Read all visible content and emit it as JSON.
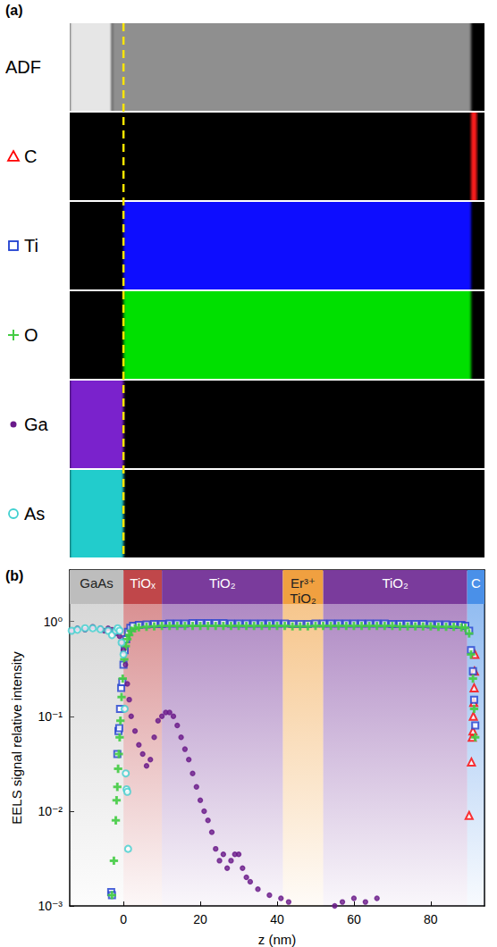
{
  "panel_a": {
    "panel_label": "(a)",
    "dashed_line": {
      "z": 0,
      "color": "#ffe600",
      "line_style": "dashed"
    },
    "rows": [
      {
        "label": "ADF",
        "regions": [
          {
            "z": [
              -14,
              -3
            ],
            "color": "#e6e6e6"
          },
          {
            "z": [
              -3,
              90.5
            ],
            "color": "#8f8f8f"
          }
        ]
      },
      {
        "label": "C",
        "regions": [
          {
            "z": [
              90.5,
              92
            ],
            "color": "#ff1a1a"
          }
        ]
      },
      {
        "label": "Ti",
        "regions": [
          {
            "z": [
              0,
              90.5
            ],
            "color": "#0a0aff"
          }
        ]
      },
      {
        "label": "O",
        "regions": [
          {
            "z": [
              0,
              90.5
            ],
            "color": "#00e000"
          }
        ]
      },
      {
        "label": "Ga",
        "regions": [
          {
            "z": [
              -14,
              0
            ],
            "color": "#7a22cc"
          }
        ]
      },
      {
        "label": "As",
        "regions": [
          {
            "z": [
              -14,
              0
            ],
            "color": "#22cccc"
          }
        ]
      }
    ]
  },
  "chart_data": {
    "type": "scatter",
    "panel_label": "(b)",
    "x_label": "z (nm)",
    "y_label": "EELS signal relative intensity",
    "xlim": [
      -14,
      94
    ],
    "ylim": [
      0.001,
      3.5
    ],
    "xticks": [
      0,
      20,
      40,
      60,
      80
    ],
    "yticks": [
      {
        "value": 0.001,
        "label": "10⁻³"
      },
      {
        "value": 0.01,
        "label": "10⁻²"
      },
      {
        "value": 0.1,
        "label": "10⁻¹"
      },
      {
        "value": 1,
        "label": "10⁰"
      }
    ],
    "log": "y",
    "grid": false,
    "layers": [
      {
        "label": "GaAs",
        "z": [
          -14,
          0
        ],
        "color": "#bdbdbd"
      },
      {
        "label": "TiOₓ",
        "z": [
          0,
          10
        ],
        "color": "#c0474a"
      },
      {
        "label": "TiO₂",
        "z": [
          10,
          41.5
        ],
        "color": "#7a3b9c"
      },
      {
        "label": "Er³⁺ TiO₂",
        "z": [
          41.5,
          52
        ],
        "color": "#f0a040"
      },
      {
        "label": "TiO₂",
        "z": [
          52,
          89.5
        ],
        "color": "#7a3b9c"
      },
      {
        "label": "C",
        "z": [
          89.5,
          94
        ],
        "color": "#4a90e8"
      }
    ],
    "series": [
      {
        "name": "C",
        "color": "#ff0000",
        "marker": "triangle-open",
        "x": [
          90,
          90.6,
          90.8,
          91,
          91.1,
          91.2,
          91.3,
          91.4,
          91.5
        ],
        "values": [
          0.009,
          0.033,
          0.06,
          0.07,
          0.1,
          0.14,
          0.2,
          0.3,
          0.45
        ]
      },
      {
        "name": "Ti",
        "color": "#1f3fd0",
        "marker": "square-open",
        "x": [
          -3.2,
          -3,
          -1.6,
          -1.3,
          -1.1,
          -0.9,
          -0.6,
          -0.3,
          0,
          0.3,
          0.7,
          1.2,
          1.8,
          2.5,
          4,
          6,
          8,
          10,
          12,
          14,
          16,
          18,
          20,
          22,
          24,
          26,
          28,
          30,
          32,
          34,
          36,
          38,
          40,
          42,
          44,
          46,
          48,
          50,
          52,
          54,
          56,
          58,
          60,
          62,
          64,
          66,
          68,
          70,
          72,
          74,
          76,
          78,
          80,
          82,
          84,
          86,
          88,
          89,
          90,
          90.5,
          91,
          91.3,
          91.6
        ],
        "values": [
          0.0014,
          0.0013,
          0.04,
          0.07,
          0.075,
          0.12,
          0.2,
          0.23,
          0.35,
          0.5,
          0.65,
          0.78,
          0.86,
          0.9,
          0.92,
          0.93,
          0.94,
          0.94,
          0.95,
          0.95,
          0.95,
          0.96,
          0.96,
          0.96,
          0.96,
          0.96,
          0.95,
          0.95,
          0.95,
          0.95,
          0.95,
          0.95,
          0.95,
          0.95,
          0.94,
          0.94,
          0.94,
          0.95,
          0.95,
          0.95,
          0.95,
          0.95,
          0.95,
          0.95,
          0.95,
          0.95,
          0.95,
          0.94,
          0.94,
          0.94,
          0.94,
          0.94,
          0.93,
          0.93,
          0.93,
          0.92,
          0.92,
          0.9,
          0.8,
          0.5,
          0.3,
          0.15,
          0.08
        ]
      },
      {
        "name": "O",
        "color": "#44cc44",
        "marker": "plus",
        "x": [
          -3,
          -2.5,
          -2,
          -1.8,
          -1.6,
          -1.4,
          -1.2,
          -1,
          -0.8,
          -0.5,
          -0.2,
          0.2,
          0.6,
          1,
          1.5,
          2,
          3,
          4,
          6,
          8,
          10,
          12,
          14,
          16,
          18,
          20,
          22,
          24,
          26,
          28,
          30,
          32,
          34,
          36,
          38,
          40,
          42,
          44,
          46,
          48,
          50,
          52,
          54,
          56,
          58,
          60,
          62,
          64,
          66,
          68,
          70,
          72,
          74,
          76,
          78,
          80,
          82,
          84,
          86,
          88,
          89,
          90,
          90.5,
          91,
          91.3,
          91.6
        ],
        "values": [
          0.0013,
          0.003,
          0.008,
          0.013,
          0.018,
          0.028,
          0.04,
          0.06,
          0.09,
          0.16,
          0.25,
          0.4,
          0.55,
          0.65,
          0.72,
          0.8,
          0.85,
          0.87,
          0.88,
          0.89,
          0.9,
          0.9,
          0.9,
          0.9,
          0.9,
          0.9,
          0.9,
          0.9,
          0.9,
          0.9,
          0.9,
          0.9,
          0.9,
          0.9,
          0.9,
          0.9,
          0.9,
          0.89,
          0.89,
          0.89,
          0.9,
          0.9,
          0.9,
          0.9,
          0.9,
          0.9,
          0.9,
          0.9,
          0.9,
          0.9,
          0.9,
          0.89,
          0.89,
          0.89,
          0.89,
          0.89,
          0.88,
          0.88,
          0.88,
          0.87,
          0.86,
          0.75,
          0.45,
          0.25,
          0.12,
          0.06
        ]
      },
      {
        "name": "Ga",
        "color": "#6a1a8a",
        "marker": "dot",
        "x": [
          -13.5,
          -12,
          -10,
          -8,
          -6,
          -5,
          -4,
          -3,
          -2,
          -1,
          -0.5,
          0,
          0.5,
          1,
          1.5,
          2,
          3,
          4,
          5,
          6,
          7,
          8,
          9,
          10,
          11,
          12,
          13,
          14,
          15,
          16,
          17,
          18,
          19,
          20,
          21,
          22,
          23,
          24,
          25,
          26,
          27,
          28,
          29,
          30,
          31,
          32,
          33,
          35,
          38,
          41,
          43,
          55,
          57,
          60,
          63,
          66
        ],
        "values": [
          0.8,
          0.85,
          0.82,
          0.88,
          0.85,
          0.8,
          0.85,
          0.82,
          0.75,
          0.7,
          0.6,
          0.5,
          0.35,
          0.22,
          0.15,
          0.1,
          0.07,
          0.05,
          0.04,
          0.03,
          0.035,
          0.06,
          0.09,
          0.1,
          0.11,
          0.11,
          0.1,
          0.08,
          0.06,
          0.045,
          0.035,
          0.025,
          0.018,
          0.013,
          0.01,
          0.008,
          0.006,
          0.004,
          0.003,
          0.0035,
          0.0025,
          0.003,
          0.0035,
          0.0035,
          0.0025,
          0.002,
          0.0018,
          0.0015,
          0.0013,
          0.0012,
          0.0011,
          0.001,
          0.0011,
          0.0012,
          0.0011,
          0.0012
        ]
      },
      {
        "name": "As",
        "color": "#40d0d0",
        "marker": "circle-open",
        "x": [
          -13.5,
          -12,
          -10,
          -8,
          -6,
          -4,
          -3,
          -2,
          -1.5,
          -1,
          -0.5,
          0,
          0.3,
          0.6,
          0.8,
          1,
          1.2
        ],
        "values": [
          0.8,
          0.82,
          0.85,
          0.85,
          0.83,
          0.8,
          0.72,
          0.8,
          0.85,
          0.8,
          0.6,
          0.45,
          0.12,
          0.025,
          0.017,
          0.016,
          0.004
        ]
      }
    ]
  }
}
